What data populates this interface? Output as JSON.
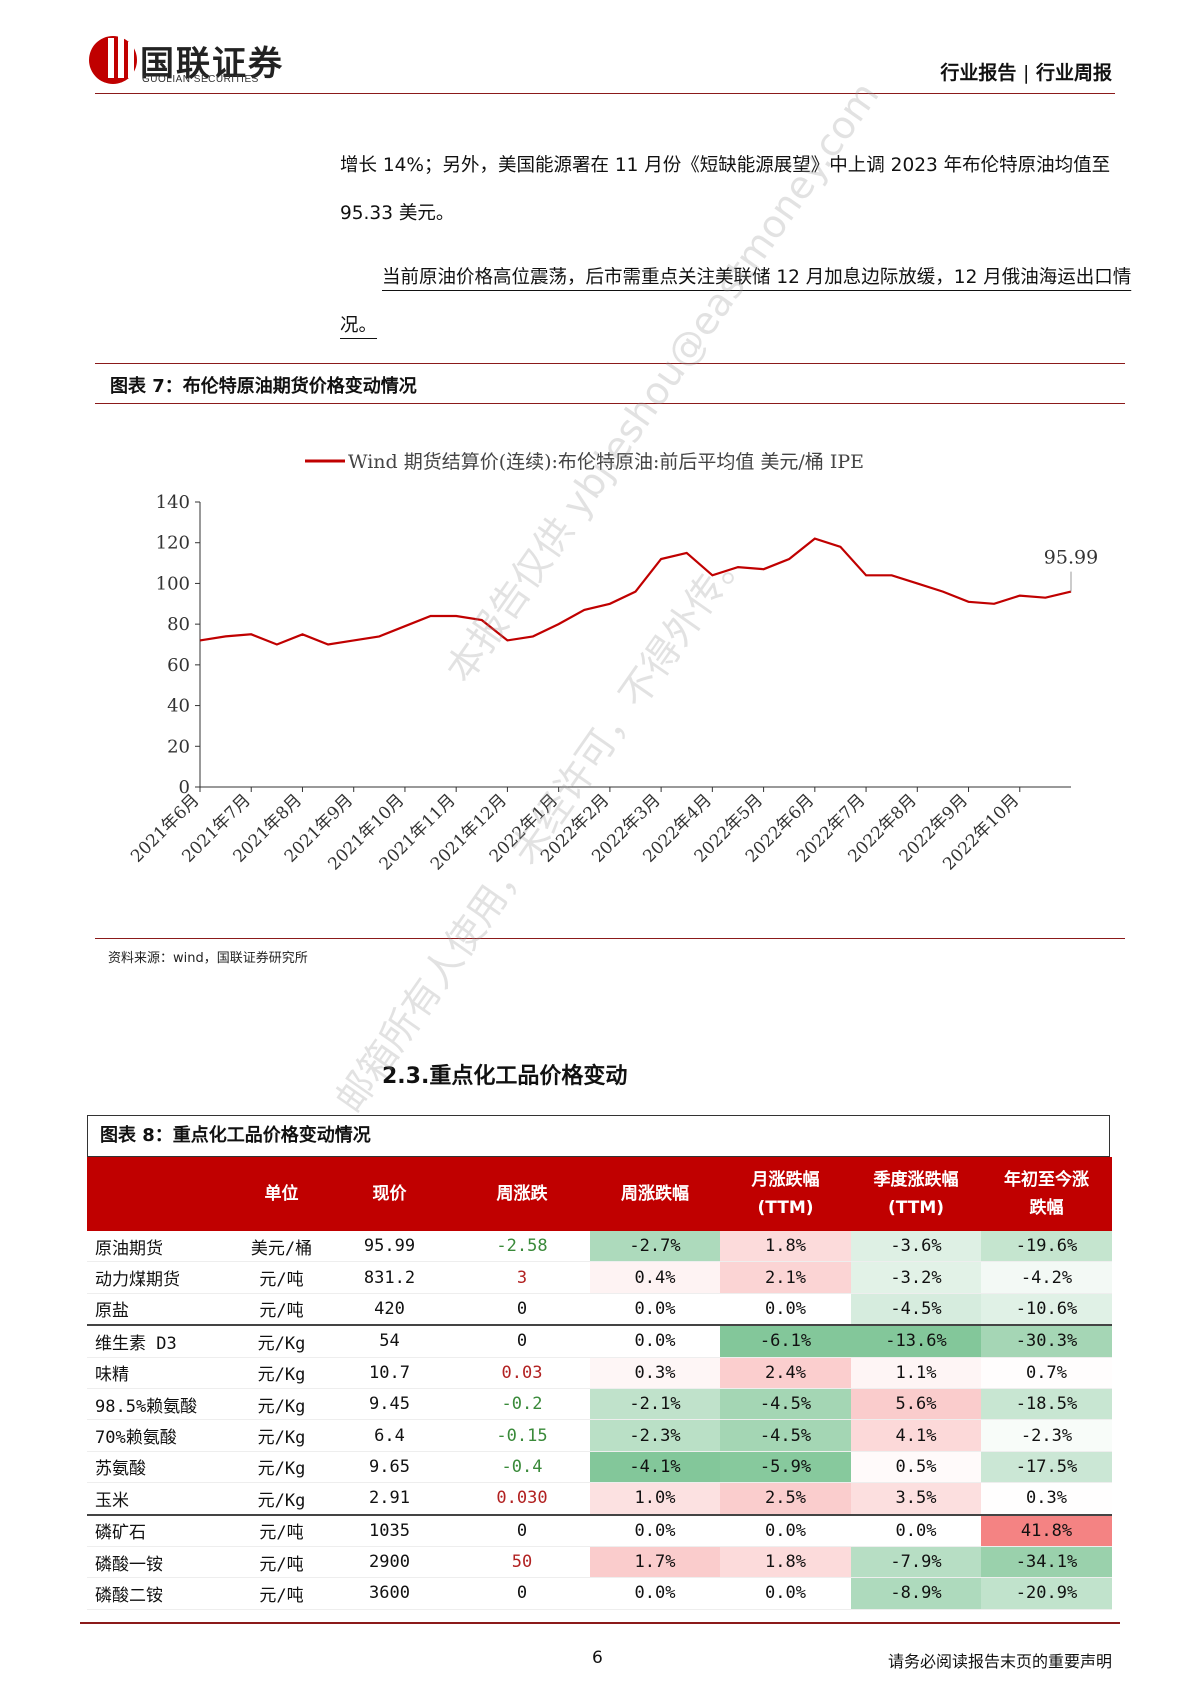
{
  "header": {
    "logo_cn": "国联证券",
    "logo_en": "GUOLIAN SECURITIES",
    "report_type": "行业报告",
    "report_subtype": "行业周报"
  },
  "paragraphs": [
    "增长 14%；另外，美国能源署在 11 月份《短缺能源展望》中上调 2023 年布伦特原油均值至 95.33 美元。",
    "当前原油价格高位震荡，后市需重点关注美联储 12 月加息边际放缓，12 月俄油海运出口情况。"
  ],
  "figure7": {
    "title": "图表 7：布伦特原油期货价格变动情况",
    "source": "资料来源：wind，国联证券研究所"
  },
  "chart_data": {
    "type": "line",
    "categories": [
      "2021年6月",
      null,
      "2021年7月",
      null,
      "2021年8月",
      null,
      "2021年9月",
      null,
      "2021年10月",
      null,
      "2021年11月",
      null,
      "2021年12月",
      null,
      "2022年1月",
      null,
      "2022年2月",
      null,
      "2022年3月",
      null,
      "2022年4月",
      null,
      "2022年5月",
      null,
      "2022年6月",
      null,
      "2022年7月",
      null,
      "2022年8月",
      null,
      "2022年9月",
      null,
      "2022年10月",
      null,
      null
    ],
    "series": [
      {
        "name": "Wind 期货结算价(连续):布伦特原油:前后平均值 美元/桶 IPE",
        "color": "#c00000",
        "values": [
          72,
          74,
          75,
          70,
          75,
          70,
          72,
          74,
          79,
          84,
          84,
          82,
          72,
          74,
          80,
          87,
          90,
          96,
          112,
          115,
          104,
          108,
          107,
          112,
          122,
          118,
          104,
          104,
          100,
          96,
          91,
          90,
          94,
          93,
          95.99
        ]
      }
    ],
    "ylim": [
      0,
      140
    ],
    "yticks": [
      0,
      20,
      40,
      60,
      80,
      100,
      120,
      140
    ],
    "legend": "top"
  },
  "watermark": [
    "本报告仅供 ybjieshou@eastmoney.com",
    "邮箱所有人使用，未经许可，不得外传。"
  ],
  "section_heading": "2.3.重点化工品价格变动",
  "figure8": {
    "title": "图表 8：重点化工品价格变动情况"
  },
  "table": {
    "header": [
      "单位",
      "现价",
      "周涨跌",
      "周涨跌幅",
      "月涨跌幅\n(TTM)",
      "季度涨跌幅\n(TTM)",
      "年初至今涨\n跌幅"
    ],
    "rows": [
      [
        "原油期货",
        "美元/桶",
        "95.99",
        "-2.58",
        "-2.7%",
        "1.8%",
        "-3.6%",
        "-19.6%"
      ],
      [
        "动力煤期货",
        "元/吨",
        "831.2",
        "3",
        "0.4%",
        "2.1%",
        "-3.2%",
        "-4.2%"
      ],
      [
        "原盐",
        "元/吨",
        "420",
        "0",
        "0.0%",
        "0.0%",
        "-4.5%",
        "-10.6%"
      ],
      [
        "维生素 D3",
        "元/Kg",
        "54",
        "0",
        "0.0%",
        "-6.1%",
        "-13.6%",
        "-30.3%"
      ],
      [
        "味精",
        "元/Kg",
        "10.7",
        "0.03",
        "0.3%",
        "2.4%",
        "1.1%",
        "0.7%"
      ],
      [
        "98.5%赖氨酸",
        "元/Kg",
        "9.45",
        "-0.2",
        "-2.1%",
        "-4.5%",
        "5.6%",
        "-18.5%"
      ],
      [
        "70%赖氨酸",
        "元/Kg",
        "6.4",
        "-0.15",
        "-2.3%",
        "-4.5%",
        "4.1%",
        "-2.3%"
      ],
      [
        "苏氨酸",
        "元/Kg",
        "9.65",
        "-0.4",
        "-4.1%",
        "-5.9%",
        "0.5%",
        "-17.5%"
      ],
      [
        "玉米",
        "元/Kg",
        "2.91",
        "0.030",
        "1.0%",
        "2.5%",
        "3.5%",
        "0.3%"
      ],
      [
        "磷矿石",
        "元/吨",
        "1035",
        "0",
        "0.0%",
        "0.0%",
        "0.0%",
        "41.8%"
      ],
      [
        "磷酸一铵",
        "元/吨",
        "2900",
        "50",
        "1.7%",
        "1.8%",
        "-7.9%",
        "-34.1%"
      ],
      [
        "磷酸二铵",
        "元/吨",
        "3600",
        "0",
        "0.0%",
        "0.0%",
        "-8.9%",
        "-20.9%"
      ]
    ]
  },
  "footer": {
    "page": "6",
    "notice": "请务必阅读报告末页的重要声明"
  }
}
